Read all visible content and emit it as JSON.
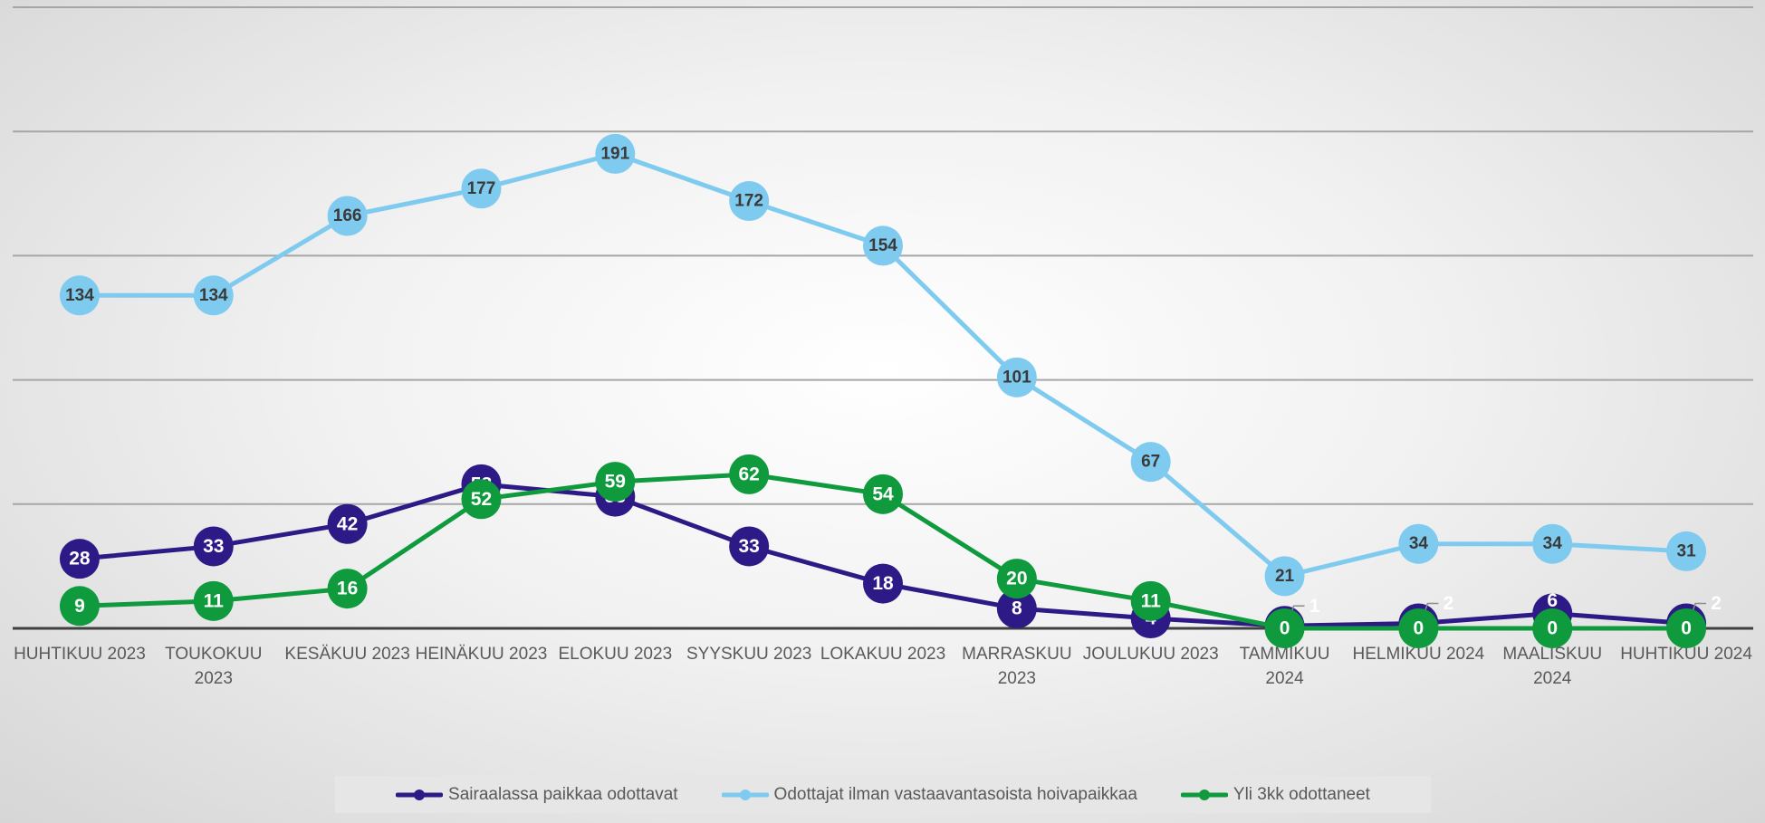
{
  "chart_data": {
    "type": "line",
    "categories": [
      [
        "HUHTIKUU 2023"
      ],
      [
        "TOUKOKUU",
        "2023"
      ],
      [
        "KESÄKUU 2023"
      ],
      [
        "HEINÄKUU 2023"
      ],
      [
        "ELOKUU 2023"
      ],
      [
        "SYYSKUU 2023"
      ],
      [
        "LOKAKUU 2023"
      ],
      [
        "MARRASKUU",
        "2023"
      ],
      [
        "JOULUKUU 2023"
      ],
      [
        "TAMMIKUU",
        "2024"
      ],
      [
        "HELMIKUU 2024"
      ],
      [
        "MAALISKUU",
        "2024"
      ],
      [
        "HUHTIKUU 2024"
      ]
    ],
    "ylim": [
      0,
      250
    ],
    "yticks": [
      0,
      50,
      100,
      150,
      200,
      250
    ],
    "grid": true,
    "legend_position": "bottom",
    "series": [
      {
        "name": "Odottajat ilman vastaavantasoista hoivapaikkaa",
        "color": "#7fcbef",
        "label_color": "#3a3a3a",
        "values": [
          134,
          134,
          166,
          177,
          191,
          172,
          154,
          101,
          67,
          21,
          34,
          34,
          31
        ]
      },
      {
        "name": "Sairaalassa paikkaa odottavat",
        "color": "#2e1a86",
        "label_color": "#ffffff",
        "values": [
          28,
          33,
          42,
          58,
          53,
          33,
          18,
          8,
          4,
          1,
          2,
          6,
          2
        ]
      },
      {
        "name": "Yli 3kk odottaneet",
        "color": "#0e9a3d",
        "label_color": "#ffffff",
        "values": [
          9,
          11,
          16,
          52,
          59,
          62,
          54,
          20,
          11,
          0,
          0,
          0,
          0
        ]
      }
    ],
    "legend_order": [
      1,
      0,
      2
    ]
  }
}
